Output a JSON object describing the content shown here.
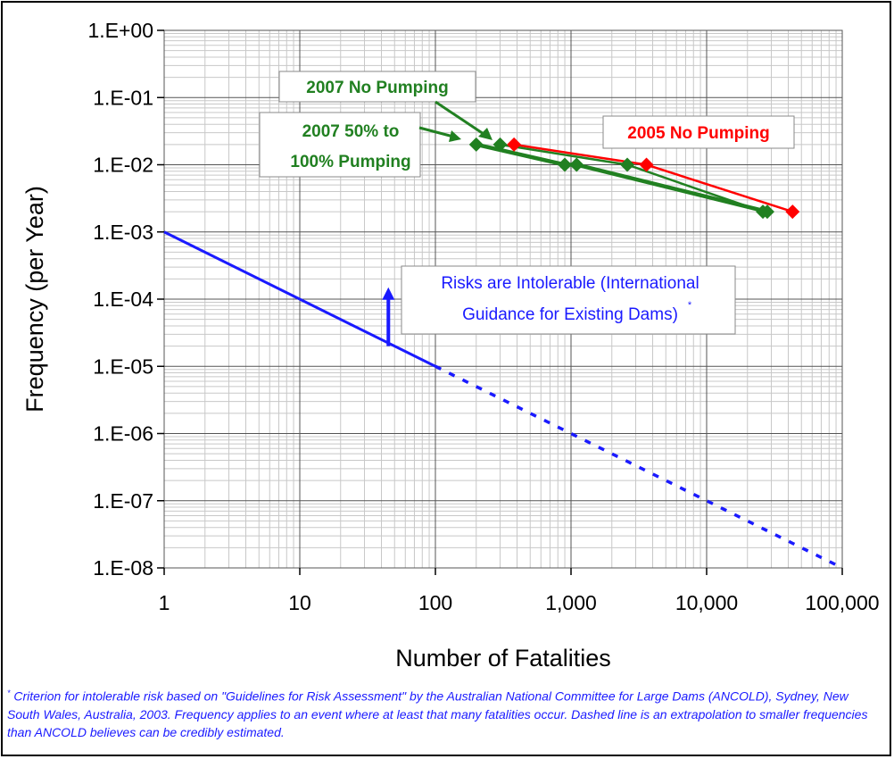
{
  "chart_data": {
    "type": "line",
    "x_scale": "log",
    "y_scale": "log",
    "xlim": [
      1,
      100000
    ],
    "ylim": [
      1e-08,
      1
    ],
    "grid": true,
    "xlabel": "Number of Fatalities",
    "ylabel": "Frequency  (per Year)",
    "x_tick_labels": [
      "1",
      "10",
      "100",
      "1,000",
      "10,000",
      "100,000"
    ],
    "y_tick_labels": [
      "1.E+00",
      "1.E-01",
      "1.E-02",
      "1.E-03",
      "1.E-04",
      "1.E-05",
      "1.E-06",
      "1.E-07",
      "1.E-08"
    ],
    "series": [
      {
        "name": "2005 No Pumping",
        "color": "#ff0000",
        "marker": "diamond",
        "points": [
          [
            380,
            0.02
          ],
          [
            3600,
            0.01
          ],
          [
            43000,
            0.002
          ]
        ]
      },
      {
        "name": "2007 No Pumping",
        "color": "#218021",
        "marker": "diamond",
        "points": [
          [
            300,
            0.02
          ],
          [
            2600,
            0.01
          ],
          [
            26000,
            0.002
          ]
        ]
      },
      {
        "name": "2007 50% to 100% Pumping",
        "color": "#218021",
        "marker": "diamond",
        "points": [
          [
            200,
            0.02
          ],
          [
            900,
            0.01
          ],
          [
            1100,
            0.01
          ],
          [
            28000,
            0.002
          ]
        ]
      }
    ],
    "criterion": {
      "color": "#1a1aff",
      "solid": [
        [
          1,
          0.001
        ],
        [
          100,
          1e-05
        ]
      ],
      "dashed": [
        [
          100,
          1e-05
        ],
        [
          100000,
          1e-08
        ]
      ],
      "arrow": {
        "x": 45,
        "from_y": 2e-05,
        "to_y": 0.00015
      }
    },
    "annotations": {
      "intolerable_line1": "Risks are Intolerable (International",
      "intolerable_line2": "Guidance for Existing Dams)",
      "intolerable_marker": "*",
      "label_2007_no_pumping": "2007 No Pumping",
      "label_2007_pumping_line1": "2007 50% to",
      "label_2007_pumping_line2": "100% Pumping",
      "label_2005_no_pumping": "2005 No Pumping"
    }
  },
  "footnote": {
    "marker": "*",
    "text": "Criterion for intolerable risk based on \"Guidelines for Risk Assessment\" by the Australian National Committee for Large Dams (ANCOLD), Sydney, New South Wales, Australia, 2003. Frequency applies to an event where at least that many fatalities occur. Dashed line is an extrapolation to smaller frequencies than ANCOLD believes can be credibly estimated."
  }
}
